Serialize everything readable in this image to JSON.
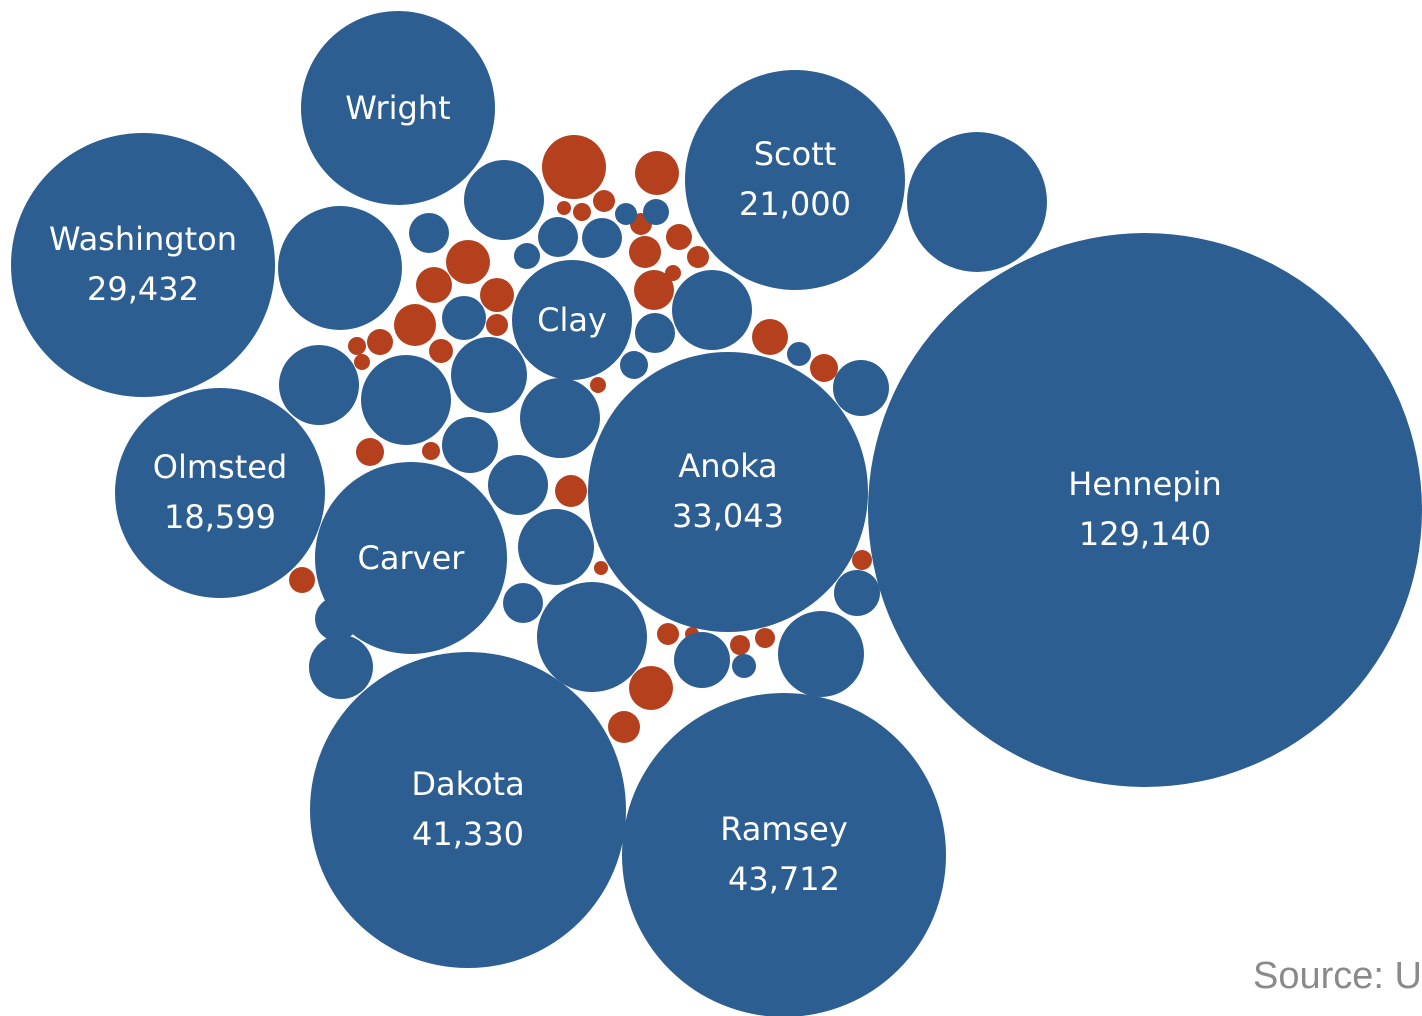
{
  "chart_data": {
    "type": "bubble",
    "title": "",
    "colors": {
      "primary": "#2c5e91",
      "secondary": "#b5401d"
    },
    "labeled": [
      {
        "name": "Hennepin",
        "value": "129,140"
      },
      {
        "name": "Ramsey",
        "value": "43,712"
      },
      {
        "name": "Dakota",
        "value": "41,330"
      },
      {
        "name": "Anoka",
        "value": "33,043"
      },
      {
        "name": "Washington",
        "value": "29,432"
      },
      {
        "name": "Scott",
        "value": "21,000"
      },
      {
        "name": "Olmsted",
        "value": "18,599"
      },
      {
        "name": "Carver",
        "value": ""
      },
      {
        "name": "Wright",
        "value": ""
      },
      {
        "name": "Clay",
        "value": ""
      }
    ]
  },
  "source_note": "Source: U"
}
